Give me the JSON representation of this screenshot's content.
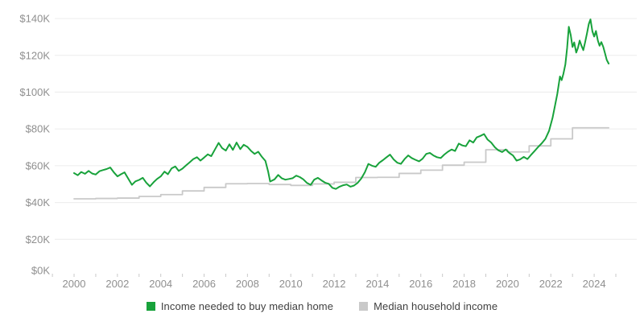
{
  "chart_data": {
    "type": "line",
    "title": "",
    "y_axis": {
      "ticks": [
        {
          "label": "$0K",
          "value": 0
        },
        {
          "label": "$20K",
          "value": 20
        },
        {
          "label": "$40K",
          "value": 40
        },
        {
          "label": "$60K",
          "value": 60
        },
        {
          "label": "$80K",
          "value": 80
        },
        {
          "label": "$100K",
          "value": 100
        },
        {
          "label": "$120K",
          "value": 120
        },
        {
          "label": "$140K",
          "value": 140
        }
      ],
      "domain": [
        0,
        140
      ],
      "grid": "horizontal-light"
    },
    "x_axis": {
      "domain": [
        1999,
        2026
      ],
      "tick_years": [
        1999,
        2000,
        2001,
        2002,
        2003,
        2004,
        2005,
        2006,
        2007,
        2008,
        2009,
        2010,
        2011,
        2012,
        2013,
        2014,
        2015,
        2016,
        2017,
        2018,
        2019,
        2020,
        2021,
        2022,
        2023,
        2024,
        2025
      ],
      "label_years": [
        2000,
        2002,
        2004,
        2006,
        2008,
        2010,
        2012,
        2014,
        2016,
        2018,
        2020,
        2022,
        2024
      ]
    },
    "legend_position": "bottom-center",
    "series": [
      {
        "name": "Income needed to buy median home",
        "color": "#18a23b",
        "style": "line",
        "unit": "$K",
        "points": [
          [
            2000.0,
            56.0
          ],
          [
            2000.17,
            54.8
          ],
          [
            2000.33,
            56.6
          ],
          [
            2000.5,
            55.6
          ],
          [
            2000.67,
            57.2
          ],
          [
            2000.83,
            55.8
          ],
          [
            2001.0,
            55.2
          ],
          [
            2001.17,
            57.0
          ],
          [
            2001.33,
            57.6
          ],
          [
            2001.5,
            58.2
          ],
          [
            2001.67,
            59.0
          ],
          [
            2001.83,
            56.5
          ],
          [
            2002.0,
            54.2
          ],
          [
            2002.17,
            55.4
          ],
          [
            2002.33,
            56.4
          ],
          [
            2002.5,
            53.0
          ],
          [
            2002.67,
            49.6
          ],
          [
            2002.83,
            51.5
          ],
          [
            2003.0,
            52.3
          ],
          [
            2003.17,
            53.4
          ],
          [
            2003.33,
            50.8
          ],
          [
            2003.5,
            48.8
          ],
          [
            2003.67,
            51.0
          ],
          [
            2003.83,
            52.8
          ],
          [
            2004.0,
            54.2
          ],
          [
            2004.17,
            56.8
          ],
          [
            2004.33,
            55.4
          ],
          [
            2004.5,
            58.6
          ],
          [
            2004.67,
            59.6
          ],
          [
            2004.83,
            57.2
          ],
          [
            2005.0,
            58.4
          ],
          [
            2005.17,
            60.2
          ],
          [
            2005.33,
            61.8
          ],
          [
            2005.5,
            63.6
          ],
          [
            2005.67,
            64.6
          ],
          [
            2005.83,
            62.8
          ],
          [
            2006.0,
            64.4
          ],
          [
            2006.17,
            66.2
          ],
          [
            2006.33,
            65.2
          ],
          [
            2006.5,
            68.8
          ],
          [
            2006.67,
            72.4
          ],
          [
            2006.83,
            69.6
          ],
          [
            2007.0,
            68.2
          ],
          [
            2007.17,
            71.6
          ],
          [
            2007.33,
            68.6
          ],
          [
            2007.5,
            72.6
          ],
          [
            2007.67,
            69.0
          ],
          [
            2007.83,
            71.4
          ],
          [
            2008.0,
            70.2
          ],
          [
            2008.17,
            68.0
          ],
          [
            2008.33,
            66.4
          ],
          [
            2008.5,
            67.6
          ],
          [
            2008.67,
            64.8
          ],
          [
            2008.83,
            62.6
          ],
          [
            2008.95,
            57.0
          ],
          [
            2009.05,
            51.4
          ],
          [
            2009.25,
            52.6
          ],
          [
            2009.42,
            55.0
          ],
          [
            2009.58,
            53.2
          ],
          [
            2009.75,
            52.4
          ],
          [
            2009.92,
            52.8
          ],
          [
            2010.08,
            53.2
          ],
          [
            2010.25,
            54.6
          ],
          [
            2010.42,
            53.8
          ],
          [
            2010.58,
            52.6
          ],
          [
            2010.75,
            50.6
          ],
          [
            2010.92,
            49.6
          ],
          [
            2011.08,
            52.4
          ],
          [
            2011.25,
            53.4
          ],
          [
            2011.42,
            52.0
          ],
          [
            2011.58,
            50.8
          ],
          [
            2011.75,
            50.2
          ],
          [
            2011.92,
            48.0
          ],
          [
            2012.08,
            47.4
          ],
          [
            2012.25,
            48.6
          ],
          [
            2012.42,
            49.4
          ],
          [
            2012.58,
            49.8
          ],
          [
            2012.75,
            48.6
          ],
          [
            2012.92,
            49.2
          ],
          [
            2013.08,
            50.6
          ],
          [
            2013.25,
            53.0
          ],
          [
            2013.42,
            56.5
          ],
          [
            2013.58,
            61.0
          ],
          [
            2013.75,
            60.0
          ],
          [
            2013.92,
            59.4
          ],
          [
            2014.08,
            61.6
          ],
          [
            2014.25,
            63.0
          ],
          [
            2014.42,
            64.6
          ],
          [
            2014.58,
            66.0
          ],
          [
            2014.75,
            63.4
          ],
          [
            2014.92,
            61.6
          ],
          [
            2015.08,
            61.0
          ],
          [
            2015.25,
            63.6
          ],
          [
            2015.42,
            65.6
          ],
          [
            2015.58,
            64.2
          ],
          [
            2015.75,
            63.2
          ],
          [
            2015.92,
            62.4
          ],
          [
            2016.08,
            63.8
          ],
          [
            2016.25,
            66.4
          ],
          [
            2016.42,
            67.0
          ],
          [
            2016.58,
            65.6
          ],
          [
            2016.75,
            64.6
          ],
          [
            2016.92,
            64.2
          ],
          [
            2017.08,
            66.0
          ],
          [
            2017.25,
            67.6
          ],
          [
            2017.42,
            68.8
          ],
          [
            2017.58,
            68.0
          ],
          [
            2017.75,
            72.0
          ],
          [
            2017.92,
            71.0
          ],
          [
            2018.08,
            70.6
          ],
          [
            2018.25,
            73.8
          ],
          [
            2018.42,
            72.6
          ],
          [
            2018.58,
            75.4
          ],
          [
            2018.75,
            76.2
          ],
          [
            2018.92,
            77.2
          ],
          [
            2019.08,
            74.2
          ],
          [
            2019.25,
            72.6
          ],
          [
            2019.42,
            70.0
          ],
          [
            2019.58,
            68.4
          ],
          [
            2019.75,
            67.4
          ],
          [
            2019.92,
            68.8
          ],
          [
            2020.08,
            67.0
          ],
          [
            2020.25,
            65.6
          ],
          [
            2020.42,
            62.8
          ],
          [
            2020.58,
            63.4
          ],
          [
            2020.75,
            64.8
          ],
          [
            2020.92,
            63.6
          ],
          [
            2021.08,
            65.8
          ],
          [
            2021.25,
            68.0
          ],
          [
            2021.42,
            70.2
          ],
          [
            2021.58,
            72.2
          ],
          [
            2021.75,
            74.6
          ],
          [
            2021.92,
            79.0
          ],
          [
            2022.08,
            86.0
          ],
          [
            2022.2,
            93.0
          ],
          [
            2022.3,
            99.0
          ],
          [
            2022.42,
            108.5
          ],
          [
            2022.5,
            106.5
          ],
          [
            2022.58,
            110.0
          ],
          [
            2022.67,
            115.0
          ],
          [
            2022.75,
            124.0
          ],
          [
            2022.83,
            135.5
          ],
          [
            2022.92,
            131.0
          ],
          [
            2023.0,
            124.5
          ],
          [
            2023.08,
            127.0
          ],
          [
            2023.17,
            121.5
          ],
          [
            2023.25,
            124.0
          ],
          [
            2023.33,
            128.0
          ],
          [
            2023.42,
            125.0
          ],
          [
            2023.5,
            122.8
          ],
          [
            2023.58,
            127.0
          ],
          [
            2023.67,
            132.0
          ],
          [
            2023.75,
            137.0
          ],
          [
            2023.83,
            139.5
          ],
          [
            2023.92,
            133.0
          ],
          [
            2024.0,
            130.2
          ],
          [
            2024.08,
            133.2
          ],
          [
            2024.17,
            128.0
          ],
          [
            2024.25,
            125.2
          ],
          [
            2024.33,
            127.2
          ],
          [
            2024.42,
            124.6
          ],
          [
            2024.5,
            121.0
          ],
          [
            2024.58,
            117.5
          ],
          [
            2024.67,
            115.5
          ]
        ]
      },
      {
        "name": "Median household income",
        "color": "#c9c9c9",
        "style": "step-after",
        "unit": "$K",
        "end_x": 2024.67,
        "points": [
          [
            2000,
            42.0
          ],
          [
            2001,
            42.2
          ],
          [
            2002,
            42.4
          ],
          [
            2003,
            43.3
          ],
          [
            2004,
            44.3
          ],
          [
            2005,
            46.3
          ],
          [
            2006,
            48.2
          ],
          [
            2007,
            50.2
          ],
          [
            2008,
            50.3
          ],
          [
            2009,
            49.8
          ],
          [
            2010,
            49.3
          ],
          [
            2011,
            50.1
          ],
          [
            2012,
            51.0
          ],
          [
            2013,
            53.6
          ],
          [
            2014,
            53.7
          ],
          [
            2015,
            55.8
          ],
          [
            2016,
            57.6
          ],
          [
            2017,
            60.3
          ],
          [
            2018,
            61.9
          ],
          [
            2019,
            68.7
          ],
          [
            2020,
            67.5
          ],
          [
            2021,
            70.8
          ],
          [
            2022,
            74.6
          ],
          [
            2023,
            80.6
          ]
        ]
      }
    ],
    "colors": {
      "grid": "#ececec",
      "tick": "#c9c9c9",
      "axis_text": "#8f8f8f",
      "legend_text": "#404040",
      "background": "#ffffff"
    }
  }
}
